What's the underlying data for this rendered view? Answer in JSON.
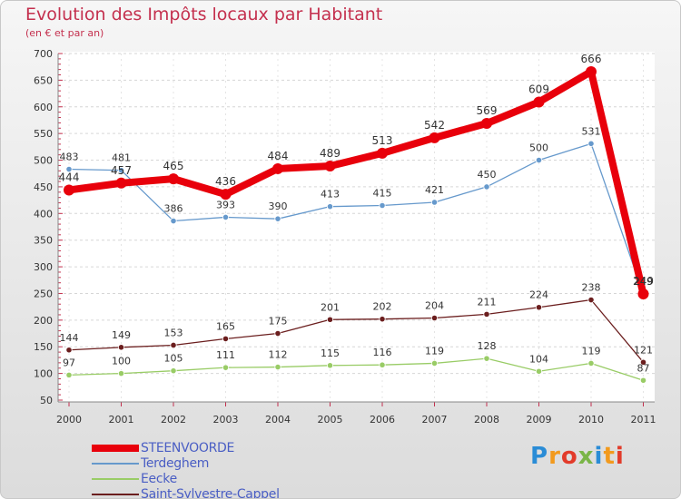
{
  "chart_data": {
    "type": "line",
    "title": "Evolution des Impôts locaux par Habitant",
    "subtitle": "(en € et par an)",
    "xlabel": "",
    "ylabel": "",
    "ylim": [
      50,
      700
    ],
    "yticks": [
      50,
      100,
      150,
      200,
      250,
      300,
      350,
      400,
      450,
      500,
      550,
      600,
      650,
      700
    ],
    "categories": [
      "2000",
      "2001",
      "2002",
      "2003",
      "2004",
      "2005",
      "2006",
      "2007",
      "2008",
      "2009",
      "2010",
      "2011"
    ],
    "series": [
      {
        "name": "STEENVOORDE",
        "color": "#e8000b",
        "values": [
          444,
          457,
          465,
          436,
          484,
          489,
          513,
          542,
          569,
          609,
          666,
          249
        ]
      },
      {
        "name": "Terdeghem",
        "color": "#6699cc",
        "values": [
          483,
          481,
          386,
          393,
          390,
          413,
          415,
          421,
          450,
          500,
          531,
          249
        ]
      },
      {
        "name": "Eecke",
        "color": "#99cc66",
        "values": [
          97,
          100,
          105,
          111,
          112,
          115,
          116,
          119,
          128,
          104,
          119,
          87
        ]
      },
      {
        "name": "Saint-Sylvestre-Cappel",
        "color": "#6b1e1e",
        "values": [
          144,
          149,
          153,
          165,
          175,
          201,
          202,
          204,
          211,
          224,
          238,
          121
        ]
      }
    ]
  },
  "logo": {
    "text": "Proxiti",
    "colors": [
      "#2a8cd6",
      "#f29a1d",
      "#e23b2a",
      "#7ab547",
      "#2a8cd6",
      "#f29a1d",
      "#e23b2a"
    ]
  }
}
